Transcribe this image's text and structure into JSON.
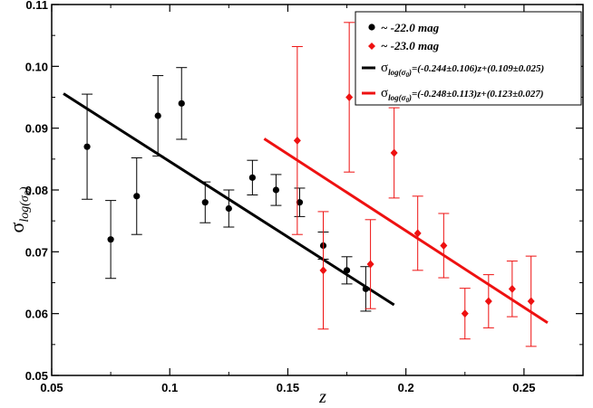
{
  "chart_data": {
    "type": "scatter",
    "xlabel": "z",
    "ylabel": "σ",
    "ylabel_sub": "log(σ",
    "ylabel_sub_idx": "0",
    "ylabel_sub_close": ")",
    "xlim": [
      0.05,
      0.275
    ],
    "ylim": [
      0.05,
      0.11
    ],
    "x_ticks": [
      0.05,
      0.1,
      0.15,
      0.2,
      0.25
    ],
    "x_tick_labels": [
      "0.05",
      "0.1",
      "0.15",
      "0.2",
      "0.25"
    ],
    "y_ticks": [
      0.05,
      0.06,
      0.07,
      0.08,
      0.09,
      0.1,
      0.11
    ],
    "y_tick_labels": [
      "0.05",
      "0.06",
      "0.07",
      "0.08",
      "0.09",
      "0.10",
      "0.11"
    ],
    "grid": false,
    "legend_position": "top-right",
    "series": [
      {
        "name": "~ -22.0 mag",
        "color": "#000000",
        "marker": "circle",
        "points": [
          {
            "x": 0.065,
            "y": 0.087,
            "yerr": 0.0085
          },
          {
            "x": 0.075,
            "y": 0.072,
            "yerr": 0.0063
          },
          {
            "x": 0.086,
            "y": 0.079,
            "yerr": 0.0062
          },
          {
            "x": 0.095,
            "y": 0.092,
            "yerr": 0.0065
          },
          {
            "x": 0.105,
            "y": 0.094,
            "yerr": 0.0058
          },
          {
            "x": 0.115,
            "y": 0.078,
            "yerr": 0.0033
          },
          {
            "x": 0.125,
            "y": 0.077,
            "yerr": 0.003
          },
          {
            "x": 0.135,
            "y": 0.082,
            "yerr": 0.0028
          },
          {
            "x": 0.145,
            "y": 0.08,
            "yerr": 0.0025
          },
          {
            "x": 0.155,
            "y": 0.078,
            "yerr": 0.0023
          },
          {
            "x": 0.165,
            "y": 0.071,
            "yerr": 0.0022
          },
          {
            "x": 0.175,
            "y": 0.067,
            "yerr": 0.0022
          },
          {
            "x": 0.183,
            "y": 0.064,
            "yerr": 0.0036
          }
        ]
      },
      {
        "name": "~ -23.0 mag",
        "color": "#ee1111",
        "marker": "diamond",
        "points": [
          {
            "x": 0.154,
            "y": 0.088,
            "yerr": 0.0152
          },
          {
            "x": 0.165,
            "y": 0.067,
            "yerr": 0.0095
          },
          {
            "x": 0.176,
            "y": 0.095,
            "yerr": 0.0121
          },
          {
            "x": 0.185,
            "y": 0.068,
            "yerr": 0.0072
          },
          {
            "x": 0.195,
            "y": 0.086,
            "yerr": 0.0073
          },
          {
            "x": 0.205,
            "y": 0.073,
            "yerr": 0.006
          },
          {
            "x": 0.216,
            "y": 0.071,
            "yerr": 0.0052
          },
          {
            "x": 0.225,
            "y": 0.06,
            "yerr": 0.0041
          },
          {
            "x": 0.235,
            "y": 0.062,
            "yerr": 0.0043
          },
          {
            "x": 0.245,
            "y": 0.064,
            "yerr": 0.0045
          },
          {
            "x": 0.253,
            "y": 0.062,
            "yerr": 0.0073
          }
        ]
      }
    ],
    "fits": [
      {
        "color": "#000000",
        "label_sigma": "σ",
        "label_sub": "log(σ",
        "label_sub_idx": "0",
        "label_sub_close": ")",
        "label_eq": "=(-0.244±0.106)z+(0.109±0.025)",
        "slope": -0.244,
        "intercept": 0.109,
        "x_range": [
          0.055,
          0.195
        ]
      },
      {
        "color": "#ee1111",
        "label_sigma": "σ",
        "label_sub": "log(σ",
        "label_sub_idx": "0",
        "label_sub_close": ")",
        "label_eq": "=(-0.248±0.113)z+(0.123±0.027)",
        "slope": -0.248,
        "intercept": 0.123,
        "x_range": [
          0.14,
          0.26
        ]
      }
    ]
  }
}
